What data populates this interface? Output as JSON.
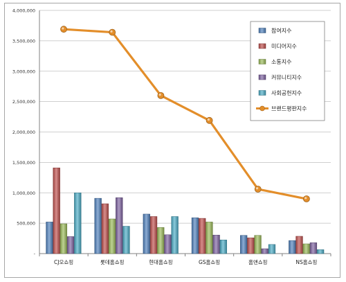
{
  "chart_data": {
    "type": "bar+line",
    "title": "",
    "xlabel": "",
    "ylabel": "",
    "ylim": [
      0,
      4000000
    ],
    "yticks": [
      0,
      500000,
      1000000,
      1500000,
      2000000,
      2500000,
      3000000,
      3500000,
      4000000
    ],
    "ytick_labels": [
      "-",
      "500,000",
      "1,000,000",
      "1,500,000",
      "2,000,000",
      "2,500,000",
      "3,000,000",
      "3,500,000",
      "4,000,000"
    ],
    "grid": true,
    "legend_position": "top-right",
    "categories": [
      "CJ오쇼핑",
      "롯데홈쇼핑",
      "현대홈쇼핑",
      "GS홈쇼핑",
      "홈앤쇼핑",
      "NS홈쇼핑"
    ],
    "series": [
      {
        "name": "참여지수",
        "type": "bar",
        "color": "#4f81bd",
        "values": [
          520000,
          910000,
          650000,
          590000,
          300000,
          215000
        ]
      },
      {
        "name": "미디어지수",
        "type": "bar",
        "color": "#c0504d",
        "values": [
          1410000,
          820000,
          610000,
          580000,
          260000,
          285000
        ]
      },
      {
        "name": "소통지수",
        "type": "bar",
        "color": "#9bbb59",
        "values": [
          490000,
          570000,
          430000,
          520000,
          300000,
          160000
        ]
      },
      {
        "name": "커뮤니티지수",
        "type": "bar",
        "color": "#8064a2",
        "values": [
          280000,
          920000,
          310000,
          305000,
          80000,
          180000
        ]
      },
      {
        "name": "사회공헌지수",
        "type": "bar",
        "color": "#4bacc6",
        "values": [
          1000000,
          450000,
          610000,
          225000,
          150000,
          65000
        ]
      },
      {
        "name": "브랜드평판지수",
        "type": "line",
        "color": "#e38e2a",
        "values": [
          3690000,
          3640000,
          2600000,
          2190000,
          1060000,
          900000
        ]
      }
    ]
  }
}
